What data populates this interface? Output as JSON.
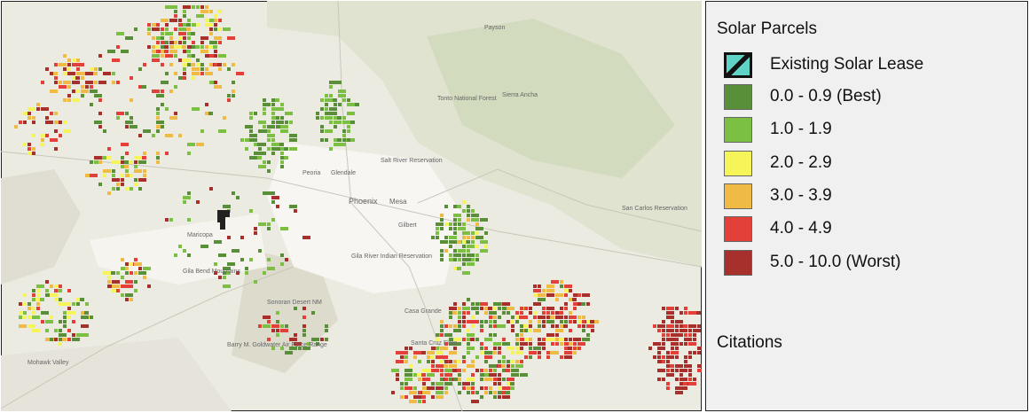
{
  "legend": {
    "title": "Solar Parcels",
    "items": [
      {
        "label": "Existing Solar Lease",
        "color": "#5fd3c6"
      },
      {
        "label": "0.0 - 0.9 (Best)",
        "color": "#5a8f3a"
      },
      {
        "label": "1.0 - 1.9",
        "color": "#7cc043"
      },
      {
        "label": "2.0 - 2.9",
        "color": "#f5f55a"
      },
      {
        "label": "3.0 - 3.9",
        "color": "#f0bb45"
      },
      {
        "label": "4.0 - 4.9",
        "color": "#e4403a"
      },
      {
        "label": "5.0 - 10.0 (Worst)",
        "color": "#a8302c"
      }
    ]
  },
  "citations": "Citations",
  "map": {
    "labels": [
      "Payson",
      "Peoria",
      "Glendale",
      "Phoenix",
      "Mesa",
      "Gilbert",
      "Maricopa",
      "Casa Grande",
      "Salt River Reservation",
      "Gila Bend Mountains",
      "Sonoran Desert NM",
      "Mohawk Valley",
      "Barry M. Goldwater Air Force Range",
      "San Carlos Reservation",
      "Sierra Ancha",
      "Tonto National Forest",
      "Gila River Indian Reservation",
      "Santa Cruz Flats"
    ]
  }
}
